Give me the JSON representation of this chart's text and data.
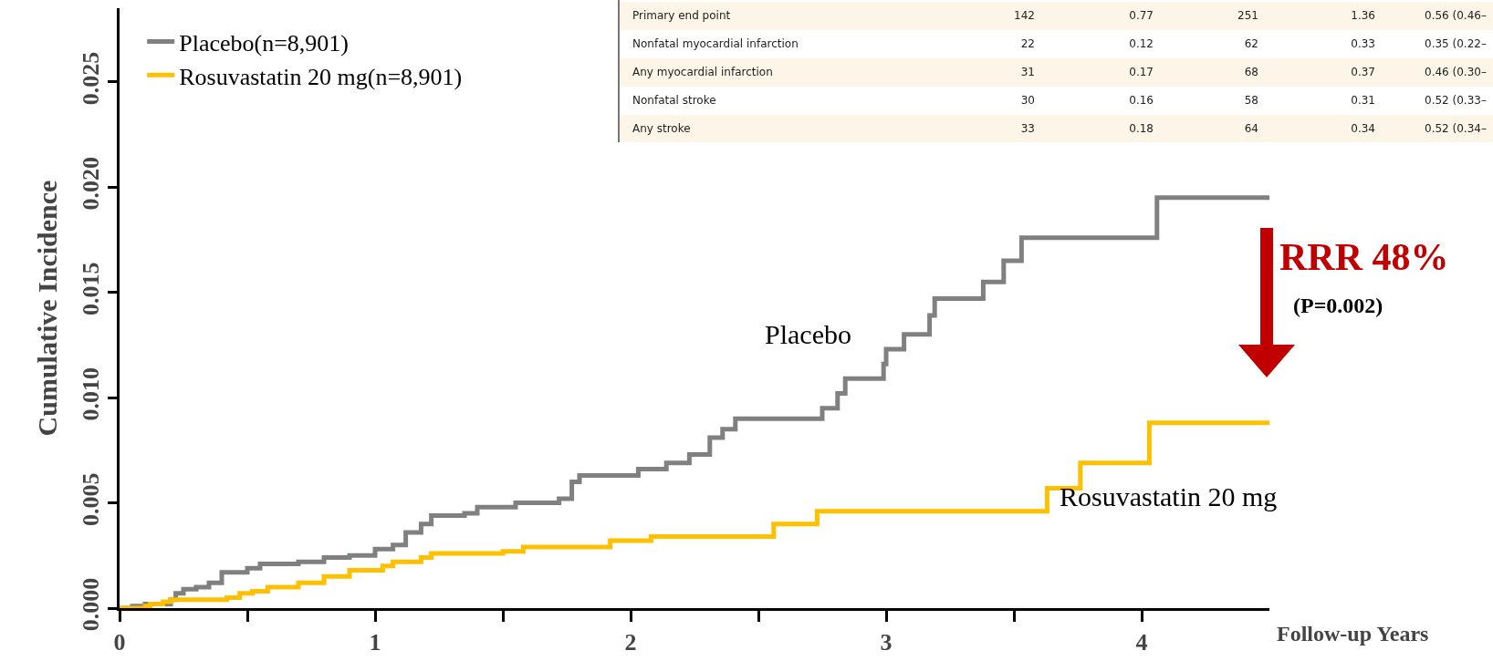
{
  "chart_data": {
    "type": "step",
    "xlabel": "Follow-up Years",
    "ylabel": "Cumulative Incidence",
    "xlim": [
      0,
      4.5
    ],
    "xticks": [
      0,
      {
        "value": 0.5,
        "label": null
      },
      1,
      {
        "value": 1.5,
        "label": null
      },
      2,
      {
        "value": 2.5,
        "label": null
      },
      3,
      {
        "value": 3.5,
        "label": null
      },
      4
    ],
    "ylim": [
      0,
      0.0285
    ],
    "yticks": [
      {
        "value": 0,
        "label": "0.000"
      },
      {
        "value": 0.005,
        "label": "0.005"
      },
      {
        "value": 0.01,
        "label": "0.010"
      },
      {
        "value": 0.015,
        "label": "0.015"
      },
      {
        "value": 0.02,
        "label": "0.020"
      },
      {
        "value": 0.025,
        "label": "0.025"
      }
    ],
    "grid": false,
    "legend": "top left",
    "series": [
      {
        "name": "Placebo(n=8,901)",
        "color": "#808080",
        "x": [
          0,
          0.05,
          0.1,
          0.2,
          0.22,
          0.25,
          0.3,
          0.35,
          0.4,
          0.5,
          0.55,
          0.7,
          0.8,
          0.9,
          1.0,
          1.07,
          1.12,
          1.18,
          1.22,
          1.35,
          1.4,
          1.55,
          1.72,
          1.77,
          1.8,
          2.03,
          2.14,
          2.23,
          2.31,
          2.36,
          2.41,
          2.75,
          2.81,
          2.84,
          2.99,
          3.0,
          3.07,
          3.17,
          3.19,
          3.38,
          3.46,
          3.53,
          4.06,
          4.5
        ],
        "values": [
          0,
          0.0001,
          0.0002,
          0.0004,
          0.0007,
          0.0009,
          0.001,
          0.0012,
          0.0017,
          0.0019,
          0.0021,
          0.0022,
          0.0024,
          0.0025,
          0.0028,
          0.003,
          0.0036,
          0.004,
          0.0044,
          0.0045,
          0.0048,
          0.005,
          0.0052,
          0.006,
          0.0063,
          0.0066,
          0.0069,
          0.0073,
          0.0081,
          0.0085,
          0.009,
          0.0095,
          0.0102,
          0.0109,
          0.0116,
          0.0123,
          0.013,
          0.0139,
          0.0147,
          0.0155,
          0.0165,
          0.0176,
          0.0195,
          0.0195
        ]
      },
      {
        "name": "Rosuvastatin 20 mg(n=8,901)",
        "color": "#ffc000",
        "x": [
          0,
          0.1,
          0.12,
          0.17,
          0.2,
          0.42,
          0.47,
          0.52,
          0.58,
          0.7,
          0.8,
          0.9,
          1.03,
          1.07,
          1.18,
          1.22,
          1.5,
          1.58,
          1.92,
          2.08,
          2.56,
          2.73,
          3.63,
          3.76,
          4.03,
          4.5
        ],
        "values": [
          0,
          0.0001,
          0.0002,
          0.0003,
          0.0004,
          0.0005,
          0.0007,
          0.0008,
          0.001,
          0.0012,
          0.0015,
          0.0018,
          0.002,
          0.0022,
          0.0024,
          0.0026,
          0.0027,
          0.0029,
          0.0032,
          0.0034,
          0.004,
          0.0046,
          0.0057,
          0.0069,
          0.0088,
          0.0088
        ]
      }
    ],
    "annotations": [
      "Placebo",
      "Rosuvastatin 20 mg",
      "RRR 48%",
      "(P=0.002)",
      "Primary end point",
      "142",
      "0.77",
      "251",
      "1.36",
      "0.56 (0.46–",
      "Nonfatal myocardial infarction",
      "22",
      "0.12",
      "62",
      "0.33",
      "0.35 (0.22–",
      "Any myocardial infarction",
      "31",
      "0.17",
      "68",
      "0.37",
      "0.46 (0.30–",
      "Nonfatal stroke",
      "30",
      "0.16",
      "58",
      "0.31",
      "0.52 (0.33–",
      "Any stroke",
      "33",
      "0.18",
      "64",
      "0.34",
      "0.52 (0.34–"
    ]
  }
}
